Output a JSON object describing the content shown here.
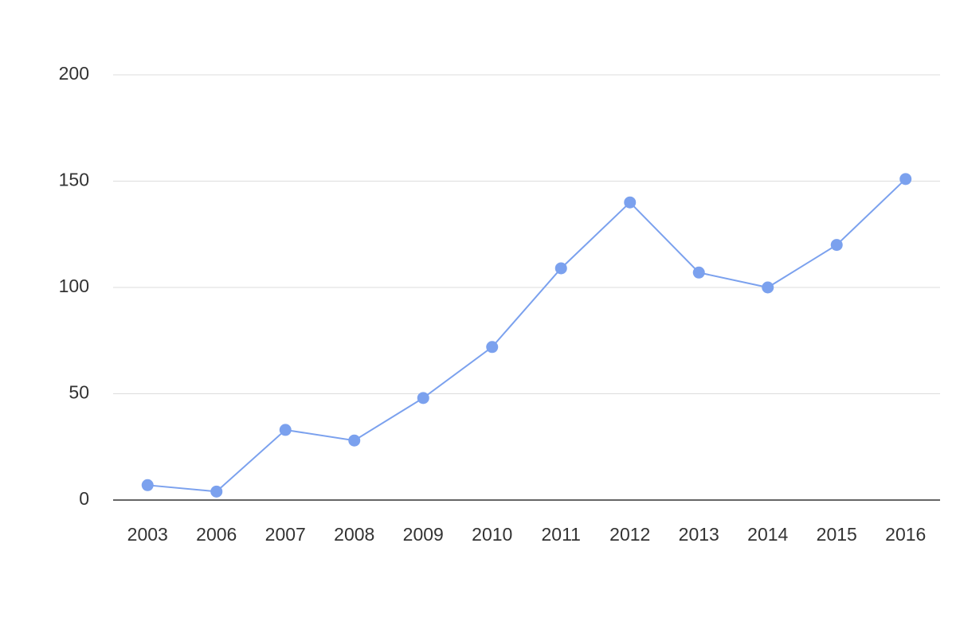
{
  "chart_data": {
    "type": "line",
    "categories": [
      "2003",
      "2006",
      "2007",
      "2008",
      "2009",
      "2010",
      "2011",
      "2012",
      "2013",
      "2014",
      "2015",
      "2016"
    ],
    "series": [
      {
        "color": "#7ba1ee",
        "values": [
          7,
          4,
          33,
          28,
          48,
          72,
          109,
          140,
          107,
          100,
          120,
          151
        ]
      }
    ],
    "ylim": [
      0,
      200
    ],
    "yticks": [
      0,
      50,
      100,
      150,
      200
    ],
    "grid": true
  }
}
